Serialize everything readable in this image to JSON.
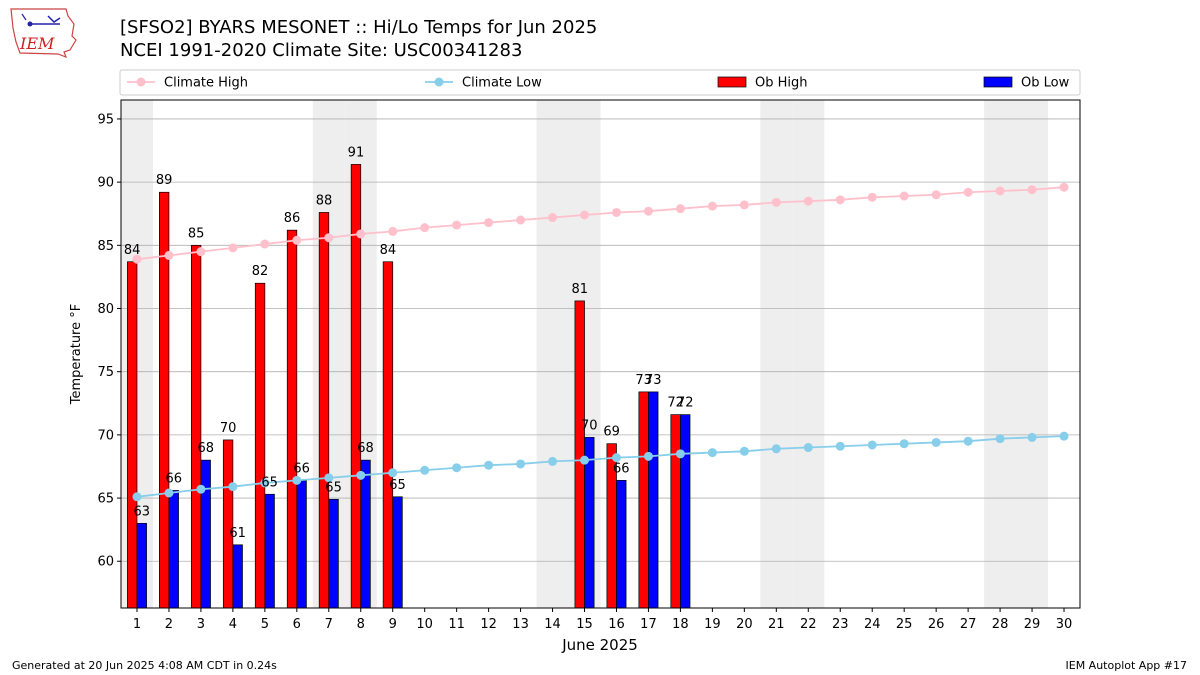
{
  "header": {
    "title_line1": "[SFSO2] BYARS MESONET :: Hi/Lo Temps for Jun 2025",
    "title_line2": "NCEI 1991-2020 Climate Site: USC00341283"
  },
  "logo": {
    "text": "IEM",
    "icon": "iem-logo-iowa-map"
  },
  "footer": {
    "left": "Generated at 20 Jun 2025 4:08 AM CDT in 0.24s",
    "right": "IEM Autoplot App #17"
  },
  "colors": {
    "climate_high": "#ffc0cb",
    "climate_low": "#87ceeb",
    "ob_high": "#ff0000",
    "ob_low": "#0000ff",
    "weekend_shade": "#eeeeee",
    "grid": "#b0b0b0"
  },
  "chart_data": {
    "type": "bar",
    "xlabel": "June 2025",
    "ylabel": "Temperature °F",
    "xlim": [
      0.5,
      30.5
    ],
    "ylim": [
      56.3,
      96.5
    ],
    "x_ticks": [
      1,
      2,
      3,
      4,
      5,
      6,
      7,
      8,
      9,
      10,
      11,
      12,
      13,
      14,
      15,
      16,
      17,
      18,
      19,
      20,
      21,
      22,
      23,
      24,
      25,
      26,
      27,
      28,
      29,
      30
    ],
    "y_ticks": [
      60,
      65,
      70,
      75,
      80,
      85,
      90,
      95
    ],
    "grid": "horizontal",
    "legend_placement": "top",
    "shaded_days": [
      1,
      7,
      8,
      14,
      15,
      21,
      22,
      28,
      29
    ],
    "legend": [
      "Climate High",
      "Climate Low",
      "Ob High",
      "Ob Low"
    ],
    "climate_high": [
      83.9,
      84.2,
      84.5,
      84.8,
      85.1,
      85.4,
      85.6,
      85.9,
      86.1,
      86.4,
      86.6,
      86.8,
      87.0,
      87.2,
      87.4,
      87.6,
      87.7,
      87.9,
      88.1,
      88.2,
      88.4,
      88.5,
      88.6,
      88.8,
      88.9,
      89.0,
      89.2,
      89.3,
      89.4,
      89.6
    ],
    "climate_low": [
      65.1,
      65.4,
      65.7,
      65.9,
      66.2,
      66.4,
      66.6,
      66.8,
      67.0,
      67.2,
      67.4,
      67.6,
      67.7,
      67.9,
      68.0,
      68.2,
      68.3,
      68.5,
      68.6,
      68.7,
      68.9,
      69.0,
      69.1,
      69.2,
      69.3,
      69.4,
      69.5,
      69.7,
      69.8,
      69.9
    ],
    "ob_high": [
      {
        "day": 1,
        "value": 83.7,
        "label": "84"
      },
      {
        "day": 2,
        "value": 89.2,
        "label": "89"
      },
      {
        "day": 3,
        "value": 85.0,
        "label": "85"
      },
      {
        "day": 4,
        "value": 69.6,
        "label": "70"
      },
      {
        "day": 5,
        "value": 82.0,
        "label": "82"
      },
      {
        "day": 6,
        "value": 86.2,
        "label": "86"
      },
      {
        "day": 7,
        "value": 87.6,
        "label": "88"
      },
      {
        "day": 8,
        "value": 91.4,
        "label": "91"
      },
      {
        "day": 9,
        "value": 83.7,
        "label": "84"
      },
      {
        "day": 15,
        "value": 80.6,
        "label": "81"
      },
      {
        "day": 16,
        "value": 69.3,
        "label": "69"
      },
      {
        "day": 17,
        "value": 73.4,
        "label": "73"
      },
      {
        "day": 18,
        "value": 71.6,
        "label": "72"
      }
    ],
    "ob_low": [
      {
        "day": 1,
        "value": 63.0,
        "label": "63"
      },
      {
        "day": 2,
        "value": 65.6,
        "label": "66"
      },
      {
        "day": 3,
        "value": 68.0,
        "label": "68"
      },
      {
        "day": 4,
        "value": 61.3,
        "label": "61"
      },
      {
        "day": 5,
        "value": 65.3,
        "label": "65"
      },
      {
        "day": 6,
        "value": 66.4,
        "label": "66"
      },
      {
        "day": 7,
        "value": 64.9,
        "label": "65"
      },
      {
        "day": 8,
        "value": 68.0,
        "label": "68"
      },
      {
        "day": 9,
        "value": 65.1,
        "label": "65"
      },
      {
        "day": 15,
        "value": 69.8,
        "label": "70"
      },
      {
        "day": 16,
        "value": 66.4,
        "label": "66"
      },
      {
        "day": 17,
        "value": 73.4,
        "label": "73"
      },
      {
        "day": 18,
        "value": 71.6,
        "label": "72"
      }
    ]
  }
}
